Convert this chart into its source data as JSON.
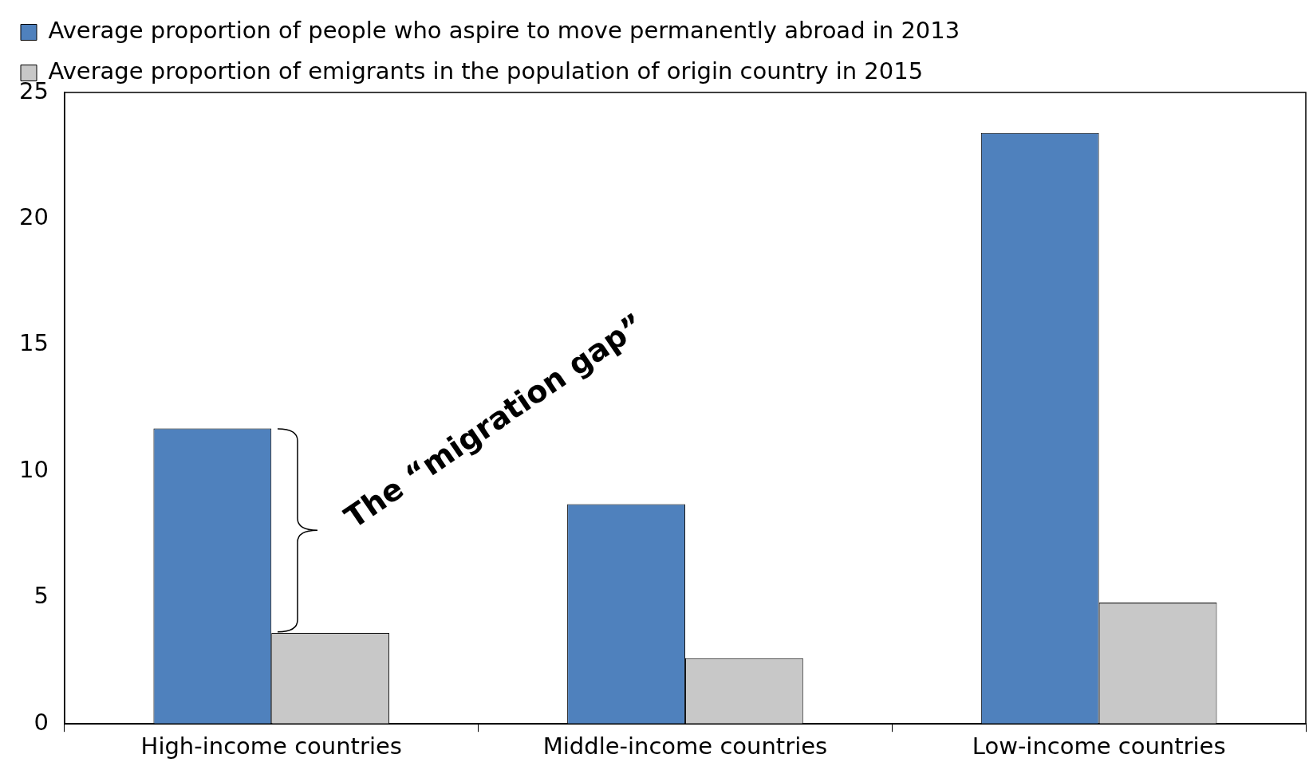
{
  "chart_data": {
    "type": "bar",
    "categories": [
      "High-income countries",
      "Middle-income countries",
      "Low-income countries"
    ],
    "series": [
      {
        "name": "Average proportion of people who aspire to move permanently abroad in 2013",
        "color": "#4f81bd",
        "values": [
          11.7,
          8.7,
          23.4
        ]
      },
      {
        "name": "Average proportion of emigrants in the population of origin country in 2015",
        "color": "#c8c8c8",
        "values": [
          3.6,
          2.6,
          4.8
        ]
      }
    ],
    "ylim": [
      0,
      25
    ],
    "yticks": [
      0,
      5,
      10,
      15,
      20,
      25
    ],
    "grid": false,
    "legend": "top left",
    "annotations": [
      "The “migration gap”"
    ]
  }
}
